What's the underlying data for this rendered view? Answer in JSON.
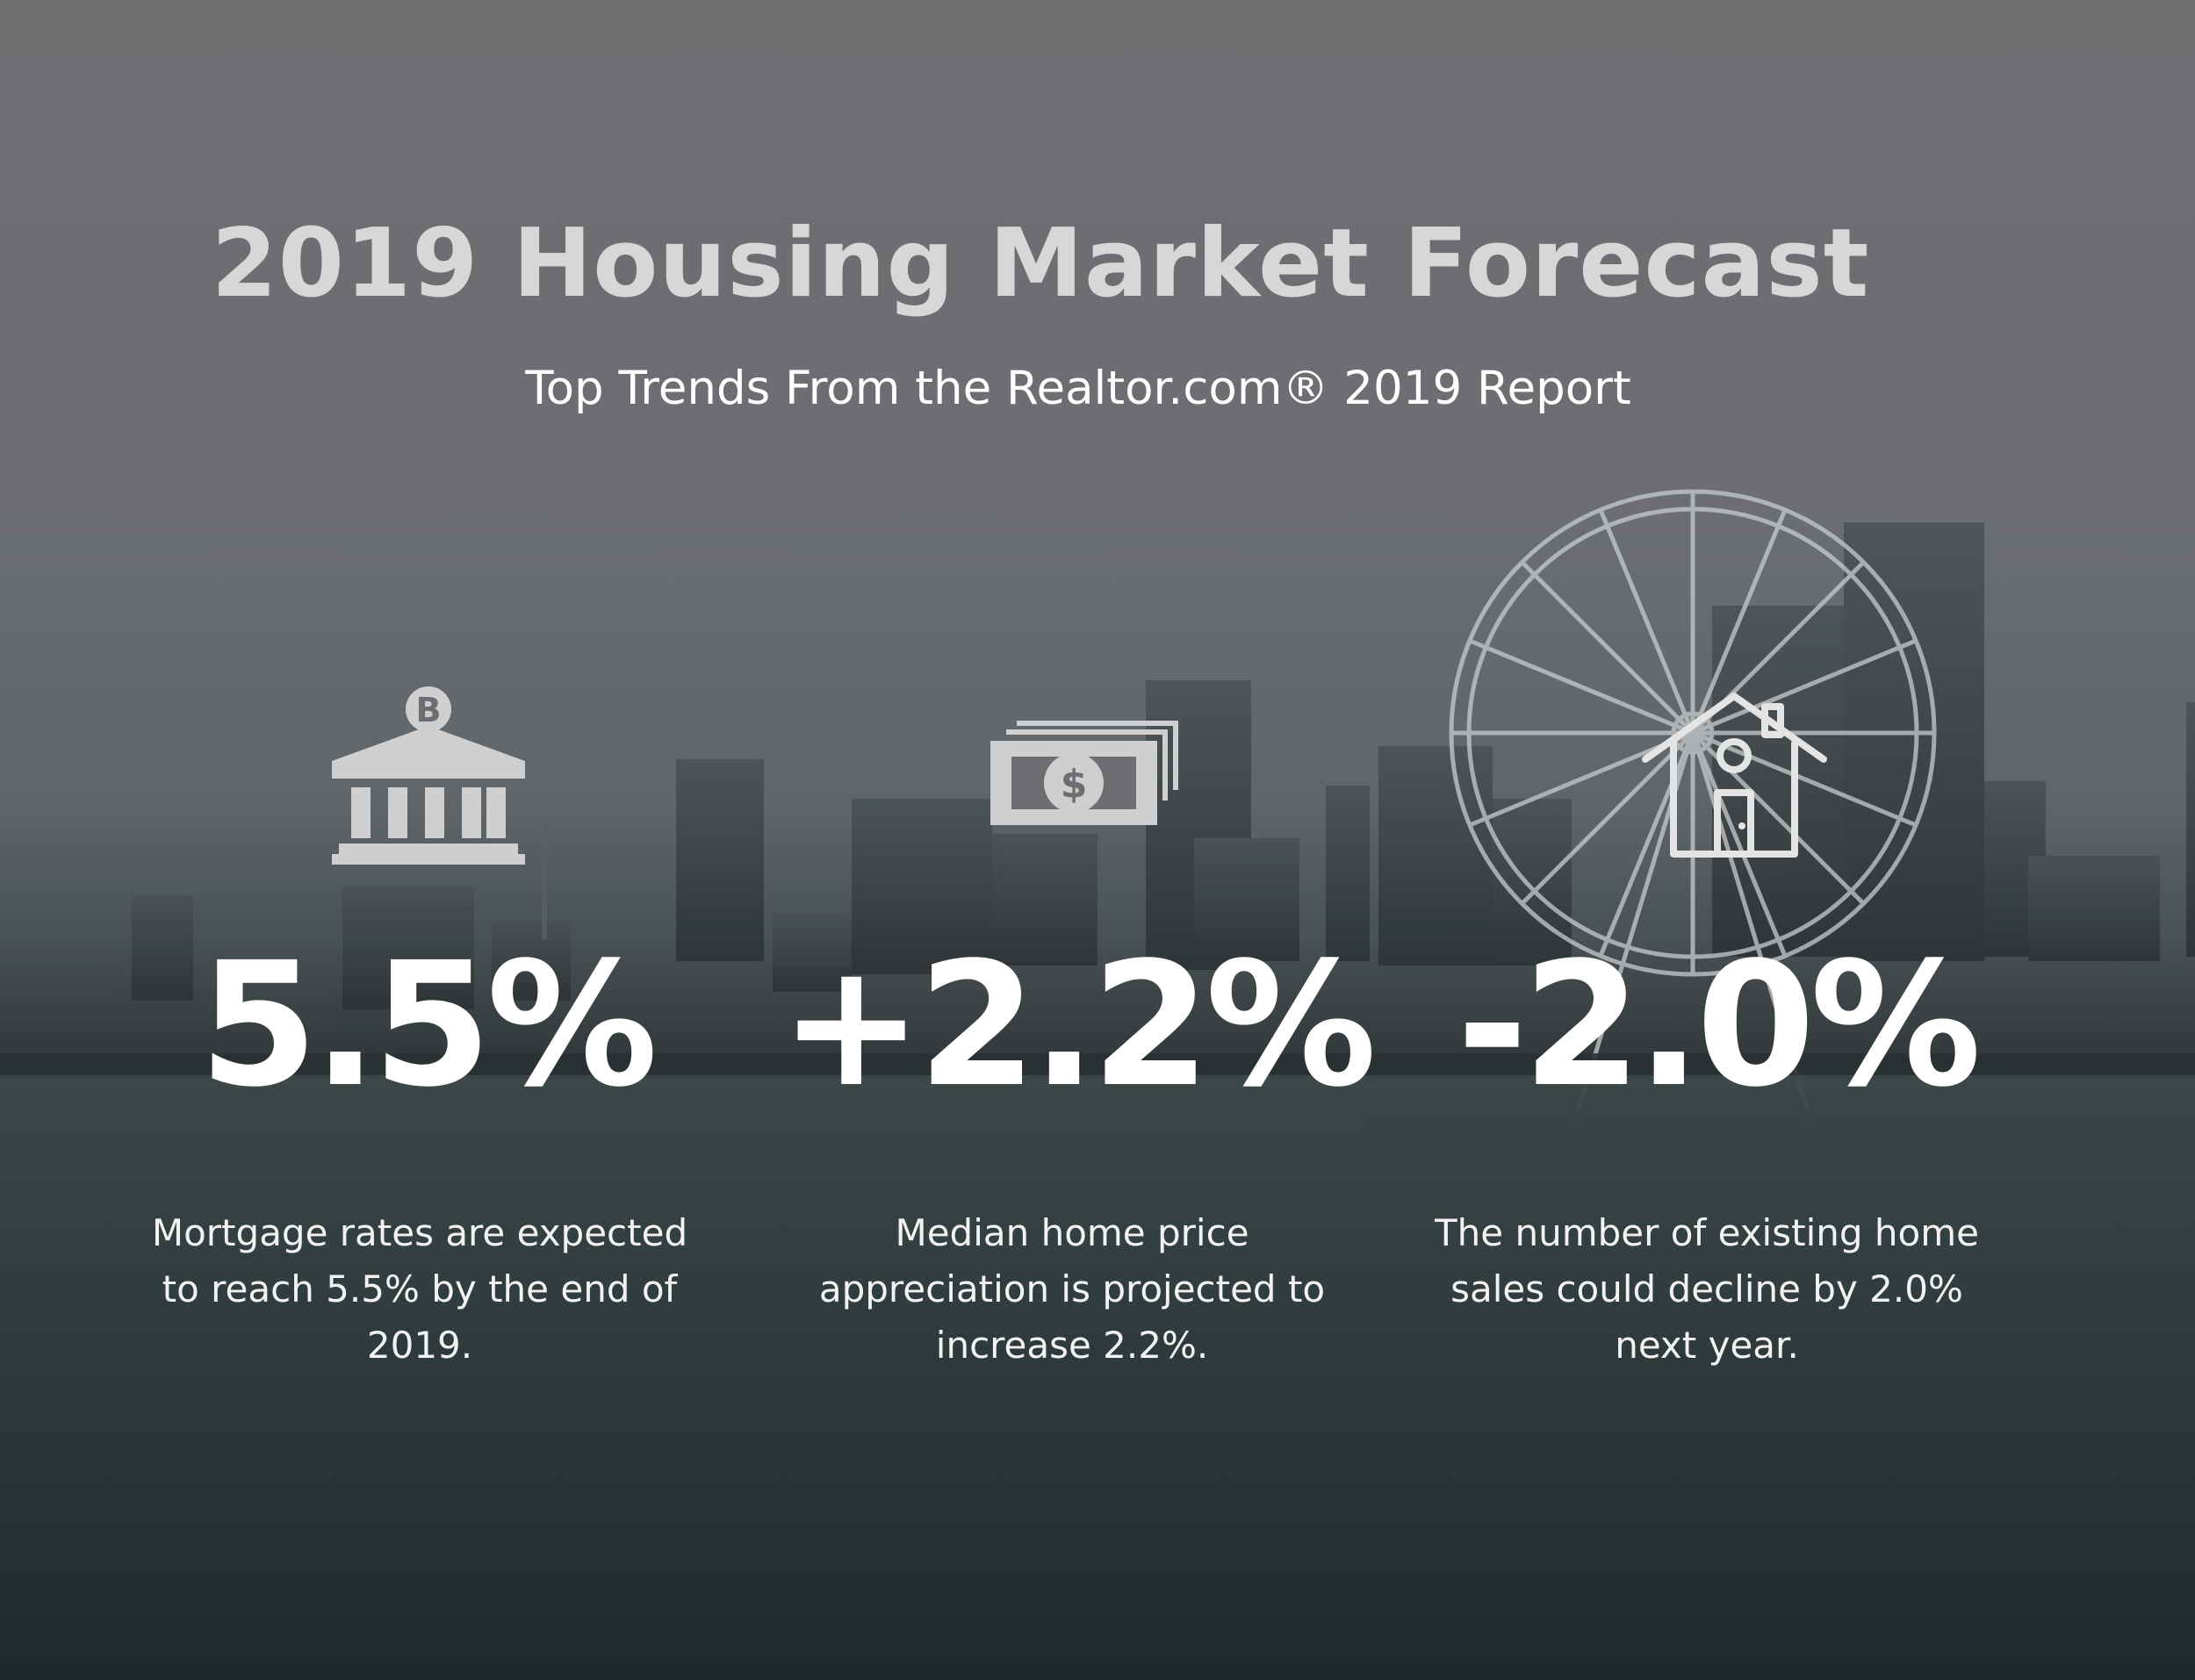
{
  "header": {
    "title": "2019 Housing Market Forecast",
    "subtitle": "Top Trends From the Realtor.com® 2019 Report"
  },
  "stats": [
    {
      "icon": "bank-icon",
      "value": "5.5%",
      "description": "Mortgage rates are expected to reach 5.5% by the end of 2019."
    },
    {
      "icon": "money-stack-icon",
      "value": "+2.2%",
      "description": "Median home price appreciation is projected to increase 2.2%."
    },
    {
      "icon": "house-icon",
      "value": "-2.0%",
      "description": "The number of existing home sales could decline by 2.0% next year."
    }
  ],
  "colors": {
    "title": "#d7d7d7",
    "text": "#ffffff",
    "icon": "#cfcfcf"
  }
}
